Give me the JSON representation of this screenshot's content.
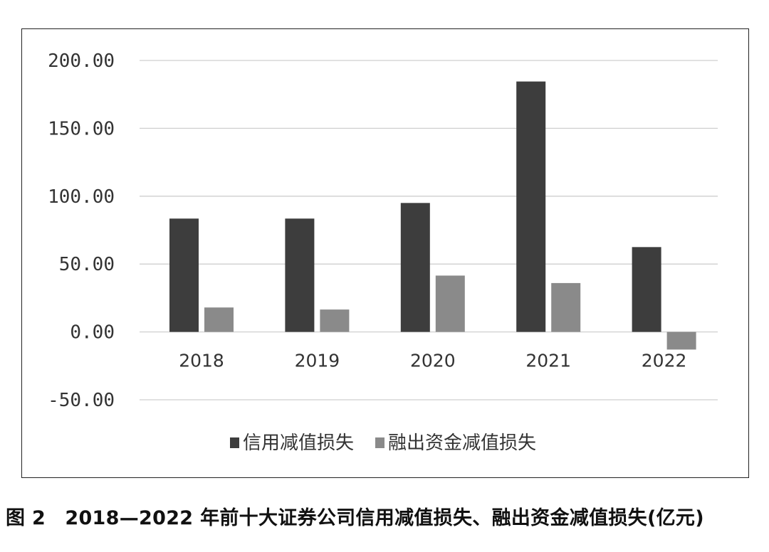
{
  "chart_data": {
    "type": "bar",
    "categories": [
      "2018",
      "2019",
      "2020",
      "2021",
      "2022"
    ],
    "series": [
      {
        "name": "信用减值损失",
        "color": "#3d3d3d",
        "values": [
          83.5,
          83.5,
          95.0,
          184.5,
          62.5
        ]
      },
      {
        "name": "融出资金减值损失",
        "color": "#8a8a8a",
        "values": [
          18.0,
          16.5,
          41.5,
          36.0,
          -13.0
        ]
      }
    ],
    "ylim": [
      -50,
      200
    ],
    "yticks": [
      "200.00",
      "150.00",
      "100.00",
      "50.00",
      "0.00",
      "-50.00"
    ],
    "ytick_values": [
      200,
      150,
      100,
      50,
      0,
      -50
    ],
    "grid": true,
    "legend_position": "bottom"
  },
  "caption": "图 2　2018—2022 年前十大证券公司信用减值损失、融出资金减值损失(亿元)"
}
